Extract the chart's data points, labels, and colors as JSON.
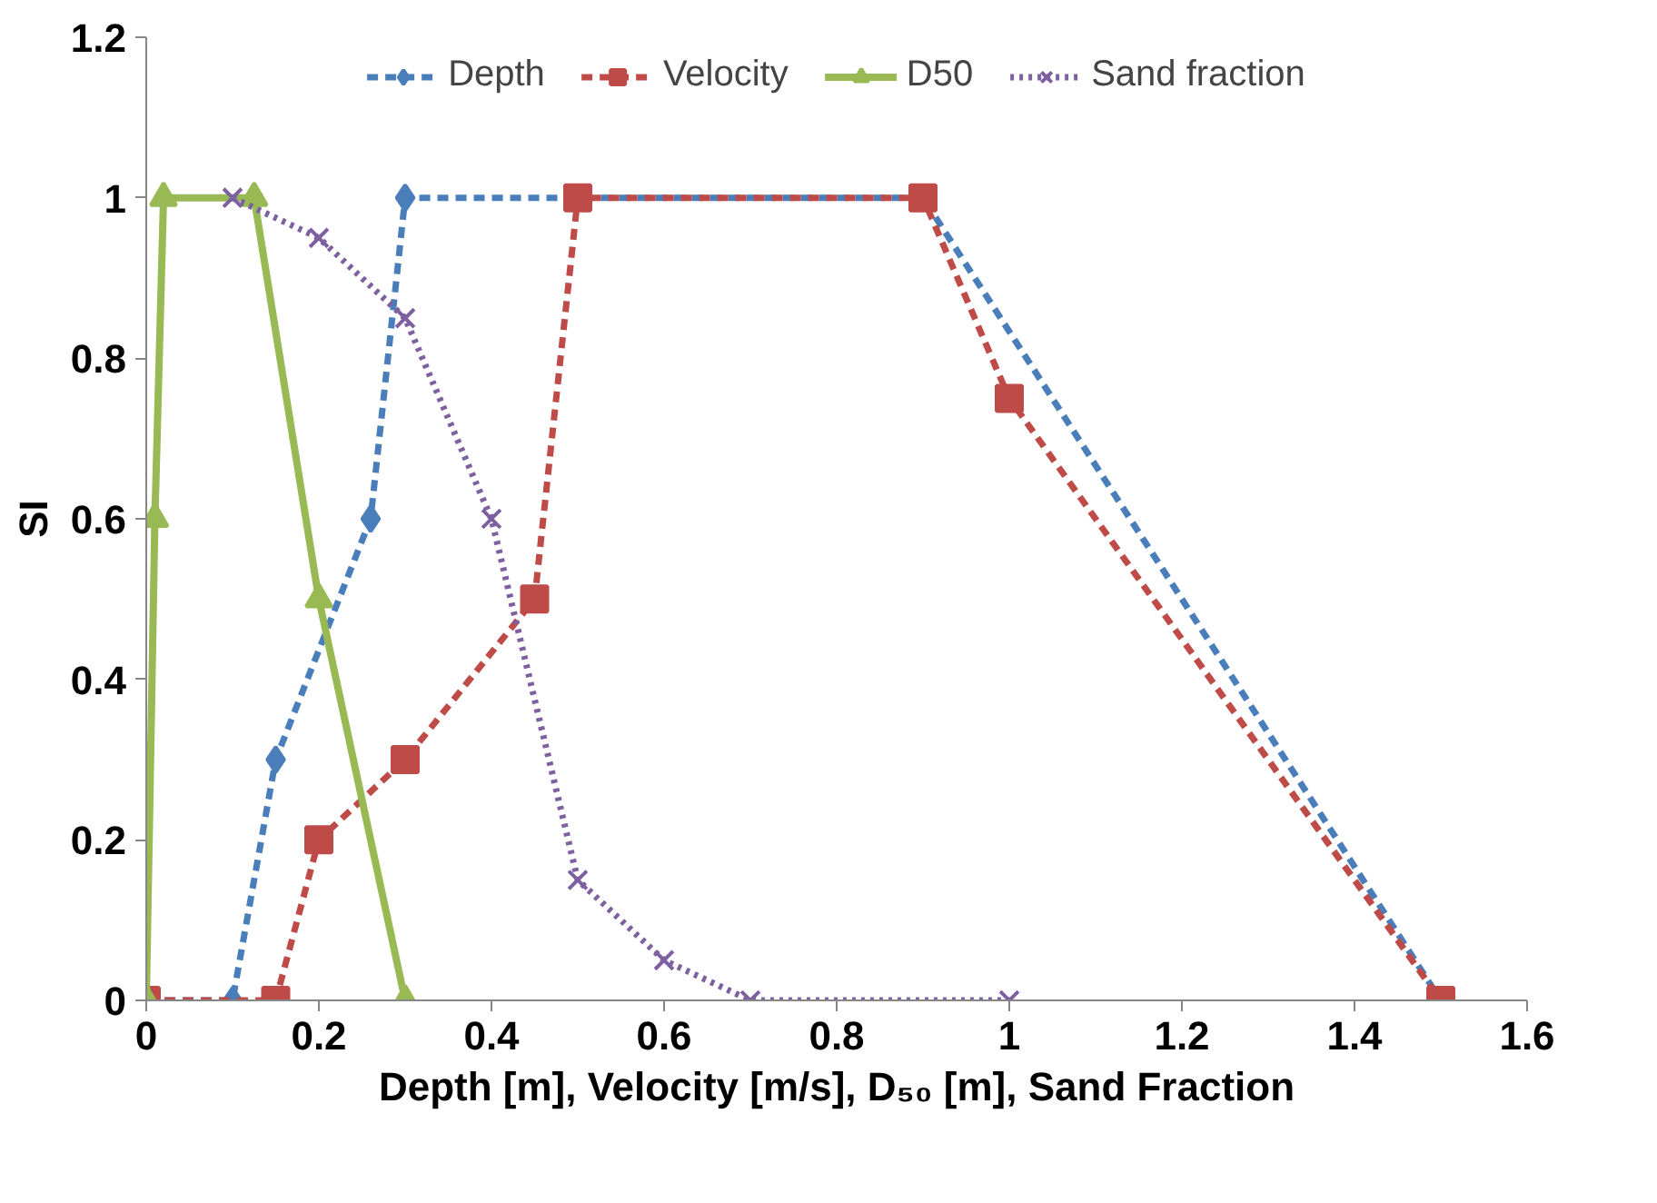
{
  "chart_data": {
    "type": "line",
    "xlabel": "Depth [m], Velocity [m/s], D₅₀ [m], Sand Fraction",
    "ylabel": "SI",
    "xlim": [
      0,
      1.6
    ],
    "ylim": [
      0,
      1.2
    ],
    "xticks": [
      0,
      0.2,
      0.4,
      0.6,
      0.8,
      1,
      1.2,
      1.4,
      1.6
    ],
    "yticks": [
      0,
      0.2,
      0.4,
      0.6,
      0.8,
      1,
      1.2
    ],
    "grid": false,
    "legend": "top",
    "series": [
      {
        "name": "Depth",
        "color": "#4a7ebb",
        "marker": "diamond",
        "line_style": "dashed",
        "x": [
          0,
          0.1,
          0.15,
          0.26,
          0.3,
          0.9,
          1.5
        ],
        "values": [
          0,
          0,
          0.3,
          0.6,
          1,
          1,
          0
        ]
      },
      {
        "name": "Velocity",
        "color": "#be4b48",
        "marker": "square",
        "line_style": "dashed",
        "x": [
          0,
          0.15,
          0.2,
          0.3,
          0.45,
          0.5,
          0.9,
          1,
          1.5
        ],
        "values": [
          0,
          0,
          0.2,
          0.3,
          0.5,
          1,
          1,
          0.75,
          0
        ]
      },
      {
        "name": "D50",
        "color": "#98b954",
        "marker": "triangle",
        "line_style": "solid",
        "x": [
          0,
          0.01,
          0.02,
          0.125,
          0.2,
          0.3
        ],
        "values": [
          0,
          0.6,
          1,
          1,
          0.5,
          0
        ]
      },
      {
        "name": "Sand fraction",
        "color": "#7d60a0",
        "marker": "cross",
        "line_style": "dotted",
        "x": [
          0.1,
          0.2,
          0.3,
          0.4,
          0.5,
          0.6,
          0.7,
          1
        ],
        "values": [
          1,
          0.95,
          0.85,
          0.6,
          0.15,
          0.05,
          0,
          0
        ]
      }
    ]
  }
}
